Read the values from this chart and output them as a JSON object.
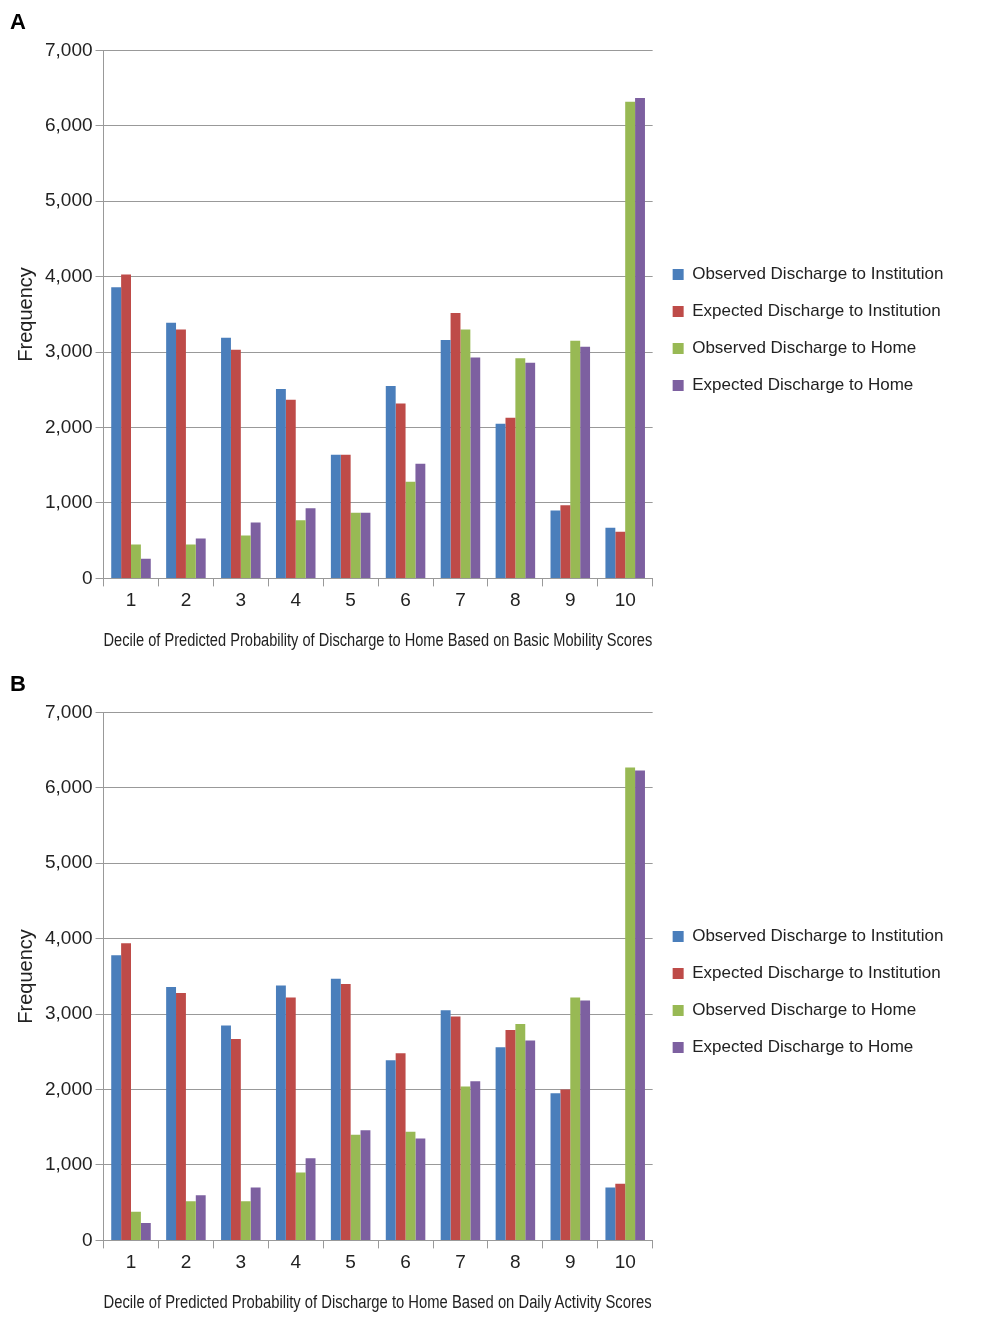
{
  "chart_data": [
    {
      "type": "bar",
      "title": "A",
      "xlabel": "Decile of Predicted Probability of Discharge to Home Based on Basic Mobility Scores",
      "ylabel": "Frequency",
      "categories": [
        "1",
        "2",
        "3",
        "4",
        "5",
        "6",
        "7",
        "8",
        "9",
        "10"
      ],
      "series": [
        {
          "name": "Observed Discharge to Institution",
          "color": "#4a7ebb",
          "values": [
            3860,
            3390,
            3190,
            2510,
            1640,
            2550,
            3160,
            2050,
            900,
            670
          ]
        },
        {
          "name": "Expected Discharge to Institution",
          "color": "#be4b48",
          "values": [
            4030,
            3300,
            3030,
            2370,
            1640,
            2320,
            3520,
            2130,
            970,
            620
          ]
        },
        {
          "name": "Observed Discharge to Home",
          "color": "#98b954",
          "values": [
            450,
            450,
            570,
            770,
            870,
            1280,
            3300,
            2920,
            3150,
            6320
          ]
        },
        {
          "name": "Expected Discharge to Home",
          "color": "#7d60a0",
          "values": [
            260,
            530,
            740,
            930,
            870,
            1520,
            2930,
            2860,
            3070,
            6370
          ]
        }
      ],
      "ylim": [
        0,
        7000
      ],
      "yticks": [
        0,
        {
          "value": 1000,
          "label": "1,000"
        },
        {
          "value": 2000,
          "label": "2,000"
        },
        {
          "value": 3000,
          "label": "3,000"
        },
        {
          "value": 4000,
          "label": "4,000"
        },
        {
          "value": 5000,
          "label": "5,000"
        },
        {
          "value": 6000,
          "label": "6,000"
        },
        {
          "value": 7000,
          "label": "7,000"
        }
      ],
      "grid": "y",
      "legend": "right"
    },
    {
      "type": "bar",
      "title": "B",
      "xlabel": "Decile of Predicted Probability of Discharge to Home Based on Daily Activity Scores",
      "ylabel": "Frequency",
      "categories": [
        "1",
        "2",
        "3",
        "4",
        "5",
        "6",
        "7",
        "8",
        "9",
        "10"
      ],
      "series": [
        {
          "name": "Observed Discharge to Institution",
          "color": "#4a7ebb",
          "values": [
            3780,
            3360,
            2850,
            3380,
            3470,
            2390,
            3050,
            2560,
            1950,
            700
          ]
        },
        {
          "name": "Expected Discharge to Institution",
          "color": "#be4b48",
          "values": [
            3940,
            3280,
            2670,
            3220,
            3400,
            2480,
            2970,
            2790,
            2000,
            750
          ]
        },
        {
          "name": "Observed Discharge to Home",
          "color": "#98b954",
          "values": [
            380,
            520,
            520,
            900,
            1400,
            1440,
            2040,
            2870,
            3220,
            6270
          ]
        },
        {
          "name": "Expected Discharge to Home",
          "color": "#7d60a0",
          "values": [
            230,
            600,
            700,
            1090,
            1460,
            1350,
            2110,
            2650,
            3180,
            6230
          ]
        }
      ],
      "ylim": [
        0,
        7000
      ],
      "yticks": [
        0,
        {
          "value": 1000,
          "label": "1,000"
        },
        {
          "value": 2000,
          "label": "2,000"
        },
        {
          "value": 3000,
          "label": "3,000"
        },
        {
          "value": 4000,
          "label": "4,000"
        },
        {
          "value": 5000,
          "label": "5,000"
        },
        {
          "value": 6000,
          "label": "6,000"
        },
        {
          "value": 7000,
          "label": "7,000"
        }
      ],
      "grid": "y",
      "legend": "right"
    }
  ]
}
